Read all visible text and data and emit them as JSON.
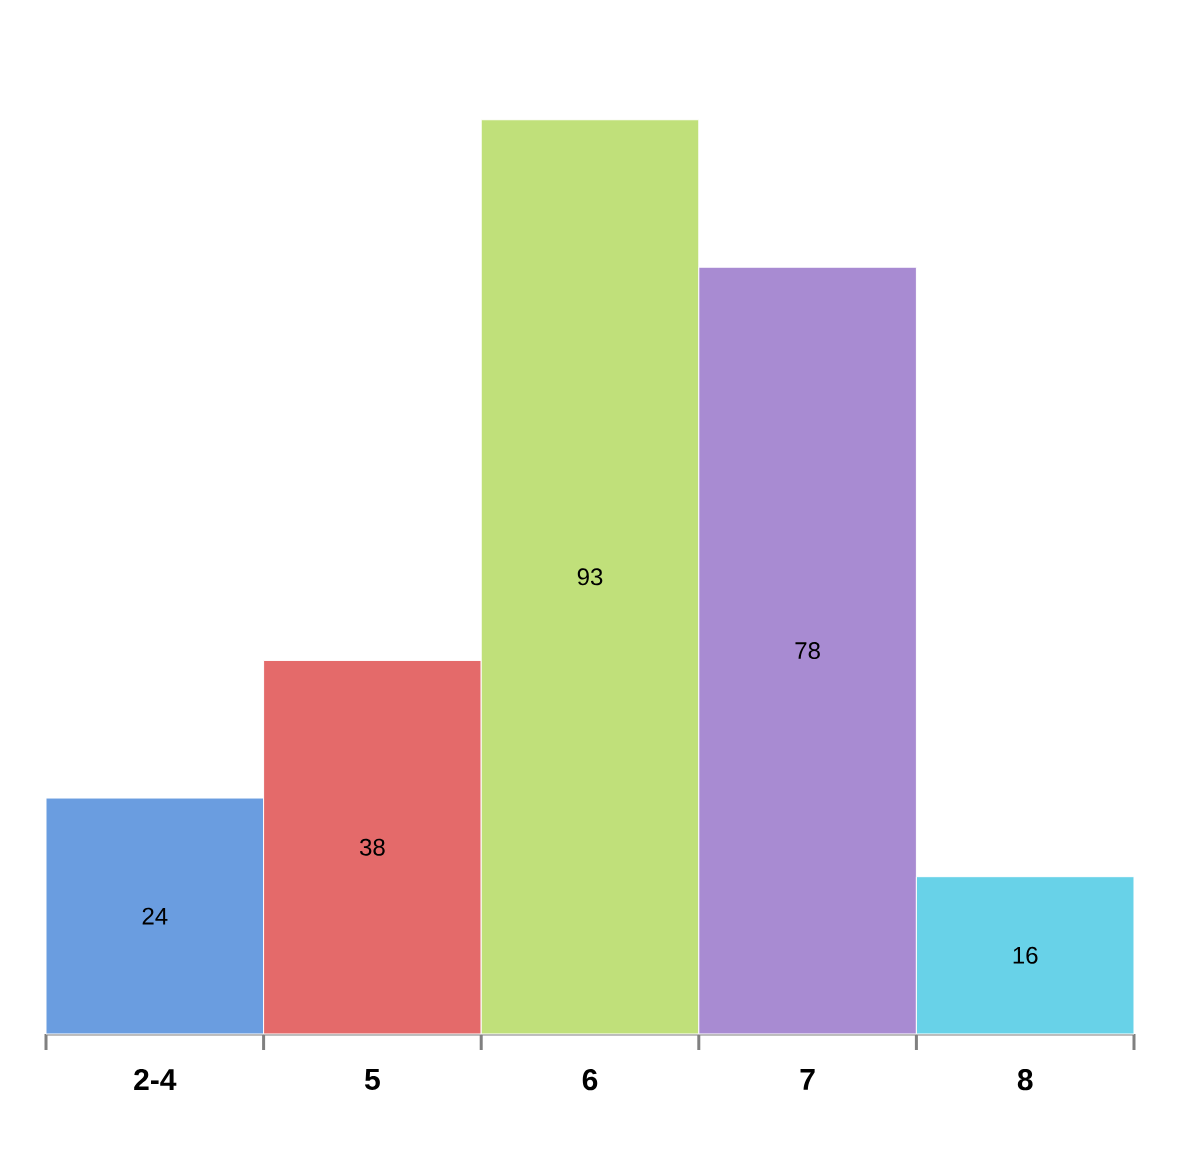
{
  "chart_data": {
    "type": "bar",
    "categories": [
      "2-4",
      "5",
      "6",
      "7",
      "8"
    ],
    "values": [
      24,
      38,
      93,
      78,
      16
    ],
    "colors": [
      "#6a9de0",
      "#e46a6a",
      "#c0e07a",
      "#a88bd2",
      "#68d2e8"
    ],
    "data_labels": true,
    "grid": false
  }
}
